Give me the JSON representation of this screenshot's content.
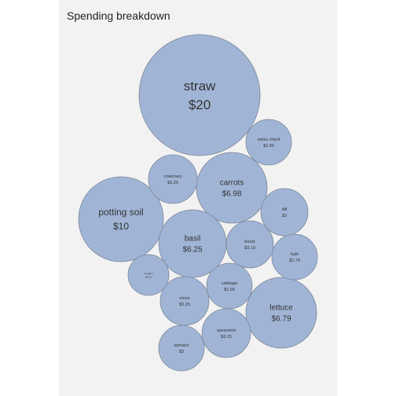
{
  "title": "Spending breakdown",
  "colors": {
    "bubble_fill": "#a0b5d6",
    "bubble_stroke": "#7d8696",
    "panel_background": "#f2f2f2"
  },
  "chart_data": {
    "type": "bubble",
    "title": "Spending breakdown",
    "items": [
      {
        "name": "straw",
        "label": "$20",
        "value": 20
      },
      {
        "name": "potting soil",
        "label": "$10",
        "value": 10
      },
      {
        "name": "carrots",
        "label": "$6.98",
        "value": 6.98
      },
      {
        "name": "lettuce",
        "label": "$6.79",
        "value": 6.79
      },
      {
        "name": "basil",
        "label": "$6.25",
        "value": 6.25
      },
      {
        "name": "rosemary",
        "label": "$3.25",
        "value": 3.25
      },
      {
        "name": "onion",
        "label": "$3.25",
        "value": 3.25
      },
      {
        "name": "spearmint",
        "label": "$3.25",
        "value": 3.25
      },
      {
        "name": "beets",
        "label": "$3.19",
        "value": 3.19
      },
      {
        "name": "dill",
        "label": "$3",
        "value": 3
      },
      {
        "name": "spinach",
        "label": "$3",
        "value": 3
      },
      {
        "name": "swiss chard",
        "label": "$2.99",
        "value": 2.99
      },
      {
        "name": "cabbage",
        "label": "$2.99",
        "value": 2.99
      },
      {
        "name": "kale",
        "label": "$2.79",
        "value": 2.79
      },
      {
        "name": "oregano",
        "label": "$2.29",
        "value": 2.29
      }
    ]
  }
}
